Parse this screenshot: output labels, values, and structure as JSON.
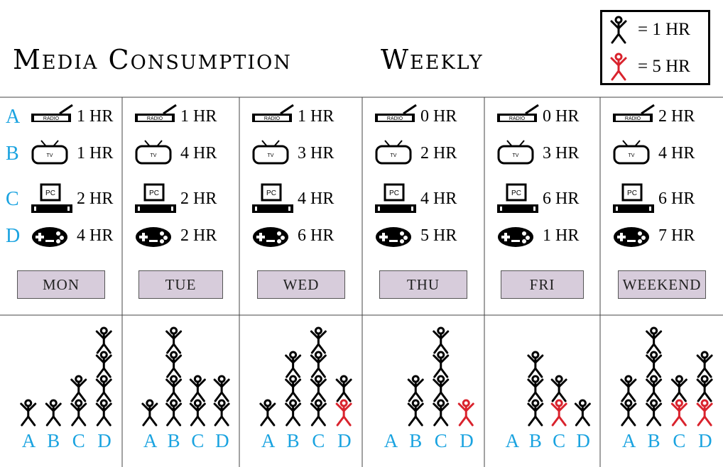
{
  "title": "Media Consumption",
  "subtitle": "Weekly",
  "legend": [
    {
      "label": "= 1 HR",
      "color": "#000000",
      "hours": 1
    },
    {
      "label": "= 5 HR",
      "color": "#d9232d",
      "hours": 5
    }
  ],
  "media_rows": [
    {
      "letter": "A",
      "icon": "radio-icon",
      "icon_text": "RADIO"
    },
    {
      "letter": "B",
      "icon": "tv-icon",
      "icon_text": "TV"
    },
    {
      "letter": "C",
      "icon": "pc-icon",
      "icon_text": "PC"
    },
    {
      "letter": "D",
      "icon": "gamepad-icon",
      "icon_text": ""
    }
  ],
  "colors": {
    "accent": "#1aa3e0",
    "five_hour": "#d9232d",
    "day_button": "#d7ccdb"
  },
  "chart_data": {
    "type": "pictograph",
    "categories": [
      "A",
      "B",
      "C",
      "D"
    ],
    "days": [
      {
        "label": "MON",
        "hours": [
          "1 HR",
          "1 HR",
          "2 HR",
          "4 HR"
        ],
        "values": [
          1,
          1,
          2,
          4
        ]
      },
      {
        "label": "TUE",
        "hours": [
          "1 HR",
          "4 HR",
          "2 HR",
          "2 HR"
        ],
        "values": [
          1,
          4,
          2,
          2
        ]
      },
      {
        "label": "WED",
        "hours": [
          "1 HR",
          "3 HR",
          "4 HR",
          "6 HR"
        ],
        "values": [
          1,
          3,
          4,
          6
        ]
      },
      {
        "label": "THU",
        "hours": [
          "0 HR",
          "2 HR",
          "4 HR",
          "5 HR"
        ],
        "values": [
          0,
          2,
          4,
          5
        ]
      },
      {
        "label": "FRI",
        "hours": [
          "0 HR",
          "3 HR",
          "6 HR",
          "1 HR"
        ],
        "values": [
          0,
          3,
          6,
          1
        ]
      },
      {
        "label": "WEEKEND",
        "hours": [
          "2 HR",
          "4 HR",
          "6 HR",
          "7 HR"
        ],
        "values": [
          2,
          4,
          6,
          7
        ]
      }
    ]
  }
}
